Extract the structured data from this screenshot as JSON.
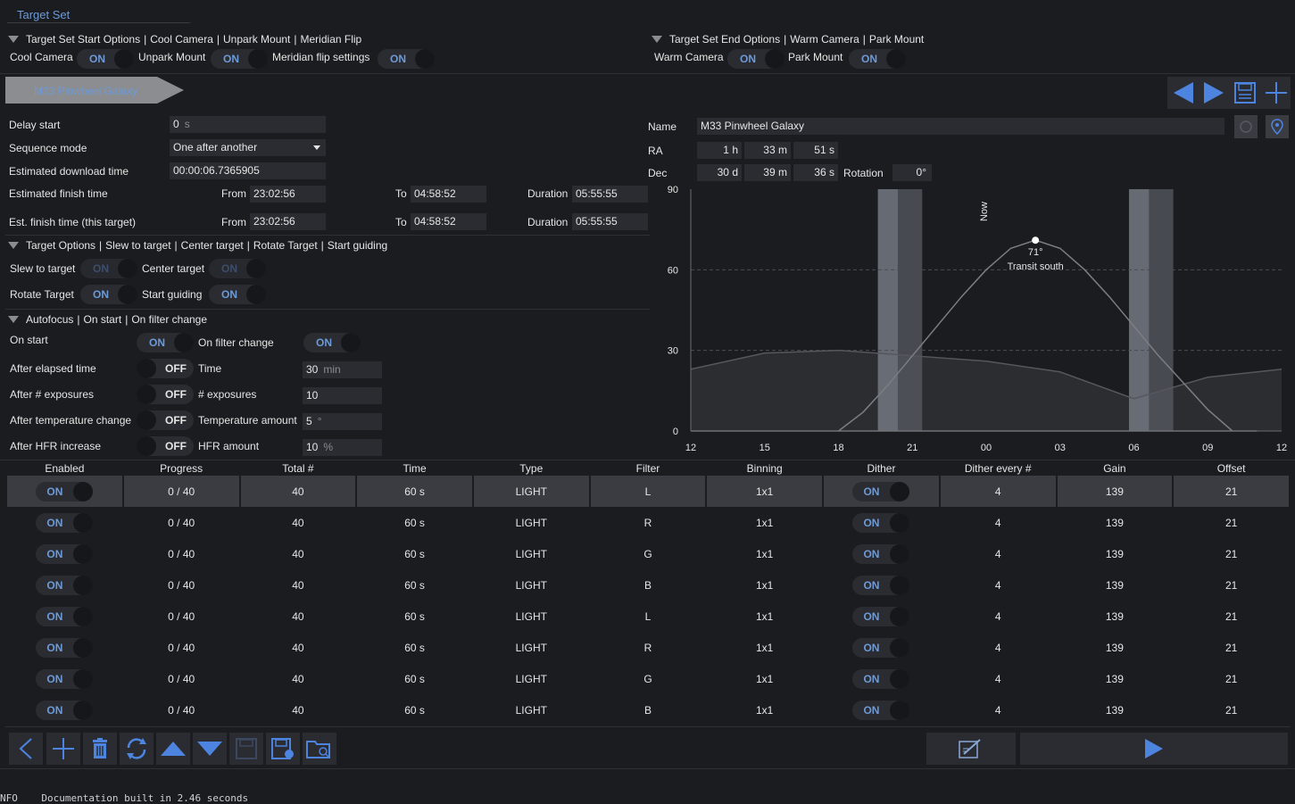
{
  "tab_title": "Target Set",
  "start_options": {
    "header": [
      "Target Set Start Options",
      "|",
      "Cool Camera",
      "|",
      "Unpark Mount",
      "|",
      "Meridian Flip"
    ],
    "cool_camera_label": "Cool Camera",
    "cool_camera_state": "ON",
    "unpark_mount_label": "Unpark Mount",
    "unpark_mount_state": "ON",
    "meridian_flip_label": "Meridian flip settings",
    "meridian_flip_state": "ON"
  },
  "end_options": {
    "header": [
      "Target Set End Options",
      "|",
      "Warm Camera",
      "|",
      "Park Mount"
    ],
    "warm_camera_label": "Warm Camera",
    "warm_camera_state": "ON",
    "park_mount_label": "Park Mount",
    "park_mount_state": "ON"
  },
  "target_tab": "M33 Pinwheel Galaxy",
  "general": {
    "delay_start_label": "Delay start",
    "delay_start_value": "0",
    "delay_start_unit": "s",
    "sequence_mode_label": "Sequence mode",
    "sequence_mode_value": "One after another",
    "est_download_label": "Estimated download time",
    "est_download_value": "00:00:06.7365905",
    "est_finish_label": "Estimated finish time",
    "est_finish_from_label": "From",
    "est_finish_from": "23:02:56",
    "est_finish_to_label": "To",
    "est_finish_to": "04:58:52",
    "est_finish_duration_label": "Duration",
    "est_finish_duration": "05:55:55",
    "est_target_label": "Est. finish time (this target)",
    "est_target_from_label": "From",
    "est_target_from": "23:02:56",
    "est_target_to_label": "To",
    "est_target_to": "04:58:52",
    "est_target_duration_label": "Duration",
    "est_target_duration": "05:55:55"
  },
  "target_options": {
    "header": [
      "Target Options",
      "|",
      "Slew to target",
      "|",
      "Center target",
      "|",
      "Rotate Target",
      "|",
      "Start guiding"
    ],
    "slew_label": "Slew to target",
    "slew_state": "ON",
    "center_label": "Center target",
    "center_state": "ON",
    "rotate_label": "Rotate Target",
    "rotate_state": "ON",
    "guiding_label": "Start guiding",
    "guiding_state": "ON"
  },
  "autofocus": {
    "header": [
      "Autofocus",
      "|",
      "On start",
      "|",
      "On filter change"
    ],
    "on_start_label": "On start",
    "on_start_state": "ON",
    "on_filter_label": "On filter change",
    "on_filter_state": "ON",
    "elapsed_label": "After elapsed time",
    "elapsed_state": "OFF",
    "time_label": "Time",
    "time_value": "30",
    "time_unit": "min",
    "exposures_label": "After # exposures",
    "exposures_state": "OFF",
    "num_exposures_label": "# exposures",
    "num_exposures_value": "10",
    "temp_label": "After temperature change",
    "temp_state": "OFF",
    "temp_amount_label": "Temperature amount",
    "temp_amount_value": "5",
    "temp_amount_unit": "°",
    "hfr_label": "After HFR increase",
    "hfr_state": "OFF",
    "hfr_amount_label": "HFR amount",
    "hfr_amount_value": "10",
    "hfr_amount_unit": "%"
  },
  "coordinates": {
    "name_label": "Name",
    "name_value": "M33 Pinwheel Galaxy",
    "ra_label": "RA",
    "ra_h": "1",
    "ra_h_unit": "h",
    "ra_m": "33",
    "ra_m_unit": "m",
    "ra_s": "51",
    "ra_s_unit": "s",
    "dec_label": "Dec",
    "dec_d": "30",
    "dec_d_unit": "d",
    "dec_m": "39",
    "dec_m_unit": "m",
    "dec_s": "36",
    "dec_s_unit": "s",
    "rotation_label": "Rotation",
    "rotation_value": "0",
    "rotation_unit": "°"
  },
  "chart_data": {
    "type": "area",
    "xlabel": "",
    "ylabel": "",
    "x_ticks": [
      "12",
      "15",
      "18",
      "21",
      "00",
      "03",
      "06",
      "09",
      "12"
    ],
    "y_ticks": [
      "90",
      "60",
      "30",
      "0"
    ],
    "ylim": [
      0,
      90
    ],
    "grid": "horizontal dashed at 30 and 60",
    "now_label": "Now",
    "transit_label": "Transit south",
    "transit_value": "71°",
    "transit_hour": 2.0,
    "transit_alt": 71,
    "now_hour": 23.9,
    "night_bands": [
      [
        19.6,
        21.4
      ],
      [
        29.8,
        31.6
      ]
    ],
    "altitude": {
      "name": "target altitude",
      "x_hours": [
        18.0,
        19.0,
        20.0,
        21.0,
        22.0,
        23.0,
        0.0,
        1.0,
        2.0,
        3.0,
        4.0,
        5.0,
        6.0,
        7.0,
        8.0,
        9.0,
        10.0,
        11.0,
        12.0
      ],
      "y": [
        -2,
        7,
        17,
        28,
        39,
        50,
        60,
        68,
        71,
        68,
        60,
        50,
        39,
        28,
        18,
        8,
        -1,
        -8,
        -12
      ]
    },
    "horizon": {
      "name": "horizon",
      "x_hours": [
        12,
        15,
        18,
        21,
        0,
        3,
        6,
        9,
        12
      ],
      "y": [
        23,
        29,
        30,
        28,
        26,
        22,
        12,
        20,
        23
      ]
    }
  },
  "table": {
    "headers": [
      "Enabled",
      "Progress",
      "Total #",
      "Time",
      "Type",
      "Filter",
      "Binning",
      "Dither",
      "Dither every #",
      "Gain",
      "Offset"
    ],
    "rows": [
      {
        "enabled": "ON",
        "progress": "0 / 40",
        "total": "40",
        "time": "60 s",
        "type": "LIGHT",
        "filter": "L",
        "binning": "1x1",
        "dither": "ON",
        "dither_every": "4",
        "gain": "139",
        "offset": "21"
      },
      {
        "enabled": "ON",
        "progress": "0 / 40",
        "total": "40",
        "time": "60 s",
        "type": "LIGHT",
        "filter": "R",
        "binning": "1x1",
        "dither": "ON",
        "dither_every": "4",
        "gain": "139",
        "offset": "21"
      },
      {
        "enabled": "ON",
        "progress": "0 / 40",
        "total": "40",
        "time": "60 s",
        "type": "LIGHT",
        "filter": "G",
        "binning": "1x1",
        "dither": "ON",
        "dither_every": "4",
        "gain": "139",
        "offset": "21"
      },
      {
        "enabled": "ON",
        "progress": "0 / 40",
        "total": "40",
        "time": "60 s",
        "type": "LIGHT",
        "filter": "B",
        "binning": "1x1",
        "dither": "ON",
        "dither_every": "4",
        "gain": "139",
        "offset": "21"
      },
      {
        "enabled": "ON",
        "progress": "0 / 40",
        "total": "40",
        "time": "60 s",
        "type": "LIGHT",
        "filter": "L",
        "binning": "1x1",
        "dither": "ON",
        "dither_every": "4",
        "gain": "139",
        "offset": "21"
      },
      {
        "enabled": "ON",
        "progress": "0 / 40",
        "total": "40",
        "time": "60 s",
        "type": "LIGHT",
        "filter": "R",
        "binning": "1x1",
        "dither": "ON",
        "dither_every": "4",
        "gain": "139",
        "offset": "21"
      },
      {
        "enabled": "ON",
        "progress": "0 / 40",
        "total": "40",
        "time": "60 s",
        "type": "LIGHT",
        "filter": "G",
        "binning": "1x1",
        "dither": "ON",
        "dither_every": "4",
        "gain": "139",
        "offset": "21"
      },
      {
        "enabled": "ON",
        "progress": "0 / 40",
        "total": "40",
        "time": "60 s",
        "type": "LIGHT",
        "filter": "B",
        "binning": "1x1",
        "dither": "ON",
        "dither_every": "4",
        "gain": "139",
        "offset": "21"
      }
    ]
  },
  "log_text": "NFO    Documentation built in 2.46 seconds",
  "colors": {
    "accent": "#6d9ad8",
    "background": "#1b1c1f",
    "field": "#2a2c31",
    "selected_row": "#3a3c42"
  }
}
